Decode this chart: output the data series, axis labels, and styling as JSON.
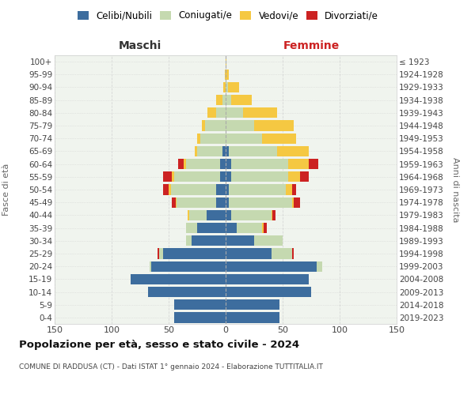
{
  "age_groups": [
    "0-4",
    "5-9",
    "10-14",
    "15-19",
    "20-24",
    "25-29",
    "30-34",
    "35-39",
    "40-44",
    "45-49",
    "50-54",
    "55-59",
    "60-64",
    "65-69",
    "70-74",
    "75-79",
    "80-84",
    "85-89",
    "90-94",
    "95-99",
    "100+"
  ],
  "birth_years": [
    "2019-2023",
    "2014-2018",
    "2009-2013",
    "2004-2008",
    "1999-2003",
    "1994-1998",
    "1989-1993",
    "1984-1988",
    "1979-1983",
    "1974-1978",
    "1969-1973",
    "1964-1968",
    "1959-1963",
    "1954-1958",
    "1949-1953",
    "1944-1948",
    "1939-1943",
    "1934-1938",
    "1929-1933",
    "1924-1928",
    "≤ 1923"
  ],
  "colors": {
    "celibi": "#3d6d9e",
    "coniugati": "#c5d9b0",
    "vedovi": "#f5c842",
    "divorziati": "#cc2222"
  },
  "males": {
    "celibi": [
      45,
      45,
      68,
      83,
      65,
      55,
      30,
      25,
      17,
      8,
      8,
      5,
      5,
      3,
      0,
      0,
      0,
      0,
      0,
      0,
      0
    ],
    "coniugati": [
      0,
      0,
      0,
      0,
      2,
      3,
      5,
      10,
      15,
      35,
      40,
      40,
      30,
      22,
      22,
      18,
      8,
      3,
      0,
      0,
      0
    ],
    "vedovi": [
      0,
      0,
      0,
      0,
      0,
      0,
      0,
      0,
      1,
      1,
      2,
      2,
      2,
      2,
      3,
      3,
      8,
      5,
      2,
      1,
      0
    ],
    "divorziati": [
      0,
      0,
      0,
      0,
      0,
      2,
      0,
      0,
      0,
      3,
      5,
      8,
      5,
      0,
      0,
      0,
      0,
      0,
      0,
      0,
      0
    ]
  },
  "females": {
    "celibi": [
      47,
      47,
      75,
      73,
      80,
      40,
      25,
      10,
      5,
      3,
      3,
      5,
      5,
      3,
      0,
      0,
      0,
      0,
      0,
      0,
      0
    ],
    "coniugati": [
      0,
      0,
      0,
      0,
      5,
      18,
      25,
      22,
      35,
      55,
      50,
      50,
      50,
      42,
      32,
      25,
      15,
      5,
      2,
      0,
      0
    ],
    "vedovi": [
      0,
      0,
      0,
      0,
      0,
      0,
      0,
      1,
      1,
      2,
      5,
      10,
      18,
      28,
      30,
      35,
      30,
      18,
      10,
      3,
      1
    ],
    "divorziati": [
      0,
      0,
      0,
      0,
      0,
      2,
      0,
      3,
      3,
      5,
      4,
      8,
      8,
      0,
      0,
      0,
      0,
      0,
      0,
      0,
      0
    ]
  },
  "title": "Popolazione per età, sesso e stato civile - 2024",
  "subtitle": "COMUNE DI RADDUSA (CT) - Dati ISTAT 1° gennaio 2024 - Elaborazione TUTTITALIA.IT",
  "xlabel_left": "Maschi",
  "xlabel_right": "Femmine",
  "ylabel_left": "Fasce di età",
  "ylabel_right": "Anni di nascita",
  "xlim": 150,
  "legend_labels": [
    "Celibi/Nubili",
    "Coniugati/e",
    "Vedovi/e",
    "Divorziati/e"
  ],
  "bg_color": "#f0f4ee",
  "grid_color": "#cccccc"
}
